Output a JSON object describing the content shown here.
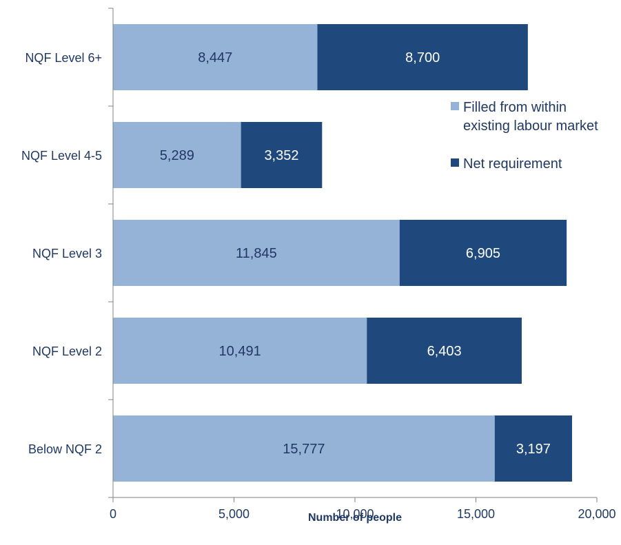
{
  "chart_data": {
    "type": "bar",
    "orientation": "horizontal",
    "stacked": true,
    "categories": [
      "NQF Level 6+",
      "NQF Level 4-5",
      "NQF Level 3",
      "NQF Level 2",
      "Below NQF 2"
    ],
    "series": [
      {
        "name": "Filled from within existing labour market",
        "legend_lines": [
          "Filled from within",
          "existing labour market"
        ],
        "color": "#95b3d7",
        "values": [
          8447,
          5289,
          11845,
          10491,
          15777
        ],
        "labels": [
          "8,447",
          "5,289",
          "11,845",
          "10,491",
          "15,777"
        ]
      },
      {
        "name": "Net requirement",
        "legend_lines": [
          "Net requirement"
        ],
        "color": "#1f497d",
        "values": [
          8700,
          3352,
          6905,
          6403,
          3197
        ],
        "labels": [
          "8,700",
          "3,352",
          "6,905",
          "6,403",
          "3,197"
        ]
      }
    ],
    "xlim": [
      0,
      20000
    ],
    "xticks": [
      0,
      5000,
      10000,
      15000,
      20000
    ],
    "xtick_labels": [
      "0",
      "5,000",
      "10,000",
      "15,000",
      "20,000"
    ],
    "xlabel": "Number of people",
    "ylabel": "",
    "title": "",
    "grid": false,
    "legend_position": "right"
  }
}
